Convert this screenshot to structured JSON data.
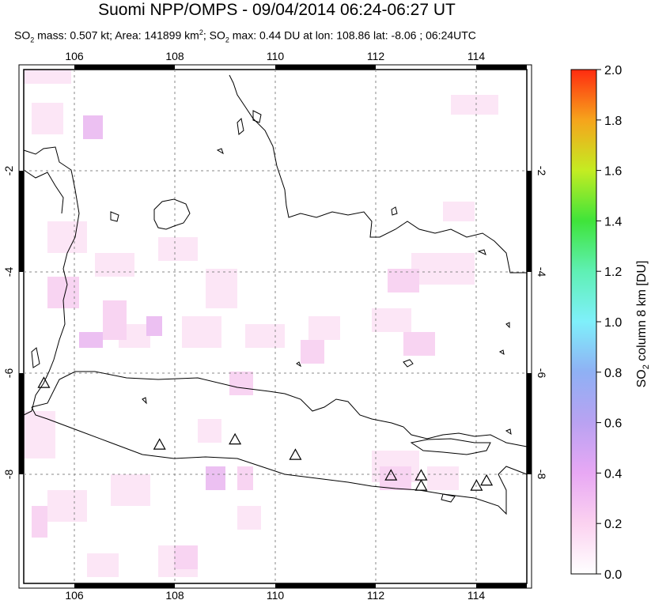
{
  "title": "Suomi NPP/OMPS - 09/04/2014 06:24-06:27 UT",
  "subtitle": {
    "so2_mass_prefix": "SO",
    "so2_mass_value": " mass: 0.507 kt; Area: 141899 km",
    "so2_max_text": "; SO",
    "so2_max_value": " max: 0.44 DU at lon: 108.86 lat: -8.06 ; 06:24UTC"
  },
  "map": {
    "lon_ticks": [
      "106",
      "108",
      "110",
      "112",
      "114"
    ],
    "lat_ticks_left": [
      "-2",
      "-4",
      "-6",
      "-8"
    ],
    "lat_ticks_right": [
      "-2",
      "-4",
      "-6",
      "-8"
    ],
    "lon_range": [
      105,
      115
    ],
    "lat_range": [
      -10,
      0
    ]
  },
  "colorbar": {
    "label": "SO2 column 8 km [DU]",
    "label_prefix": "SO",
    "label_sub": "2",
    "label_suffix": " column 8 km [DU]",
    "ticks": [
      "2.0",
      "1.8",
      "1.6",
      "1.4",
      "1.2",
      "1.0",
      "0.8",
      "0.6",
      "0.4",
      "0.2",
      "0.0"
    ],
    "range": [
      0,
      2.0
    ]
  },
  "volcanoes": [
    {
      "lon": 105.4,
      "lat": -6.1
    },
    {
      "lon": 107.7,
      "lat": -7.3
    },
    {
      "lon": 109.2,
      "lat": -7.2
    },
    {
      "lon": 110.4,
      "lat": -7.5
    },
    {
      "lon": 112.3,
      "lat": -7.9
    },
    {
      "lon": 112.9,
      "lat": -7.9
    },
    {
      "lon": 112.9,
      "lat": -8.1
    },
    {
      "lon": 114.0,
      "lat": -8.1
    },
    {
      "lon": 114.2,
      "lat": -8.0
    }
  ]
}
